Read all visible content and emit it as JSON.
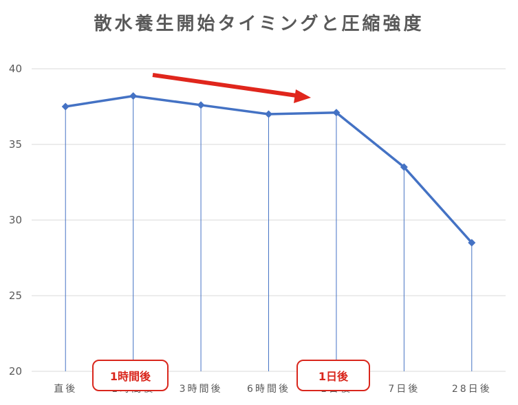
{
  "chart_data": {
    "type": "line",
    "title": "散水養生開始タイミングと圧縮強度",
    "categories": [
      "直後",
      "1時間後",
      "3時間後",
      "6時間後",
      "1日後",
      "7日後",
      "28日後"
    ],
    "series": [
      {
        "values": [
          37.5,
          38.2,
          37.6,
          37.0,
          37.1,
          33.5,
          28.5
        ],
        "color": "#4472c4"
      }
    ],
    "ylim": [
      20,
      40
    ],
    "yticks": [
      20,
      25,
      30,
      35,
      40
    ],
    "grid": true,
    "annotations": {
      "callouts": [
        "1時間後",
        "1日後"
      ],
      "arrow_color": "#e0261c"
    }
  }
}
